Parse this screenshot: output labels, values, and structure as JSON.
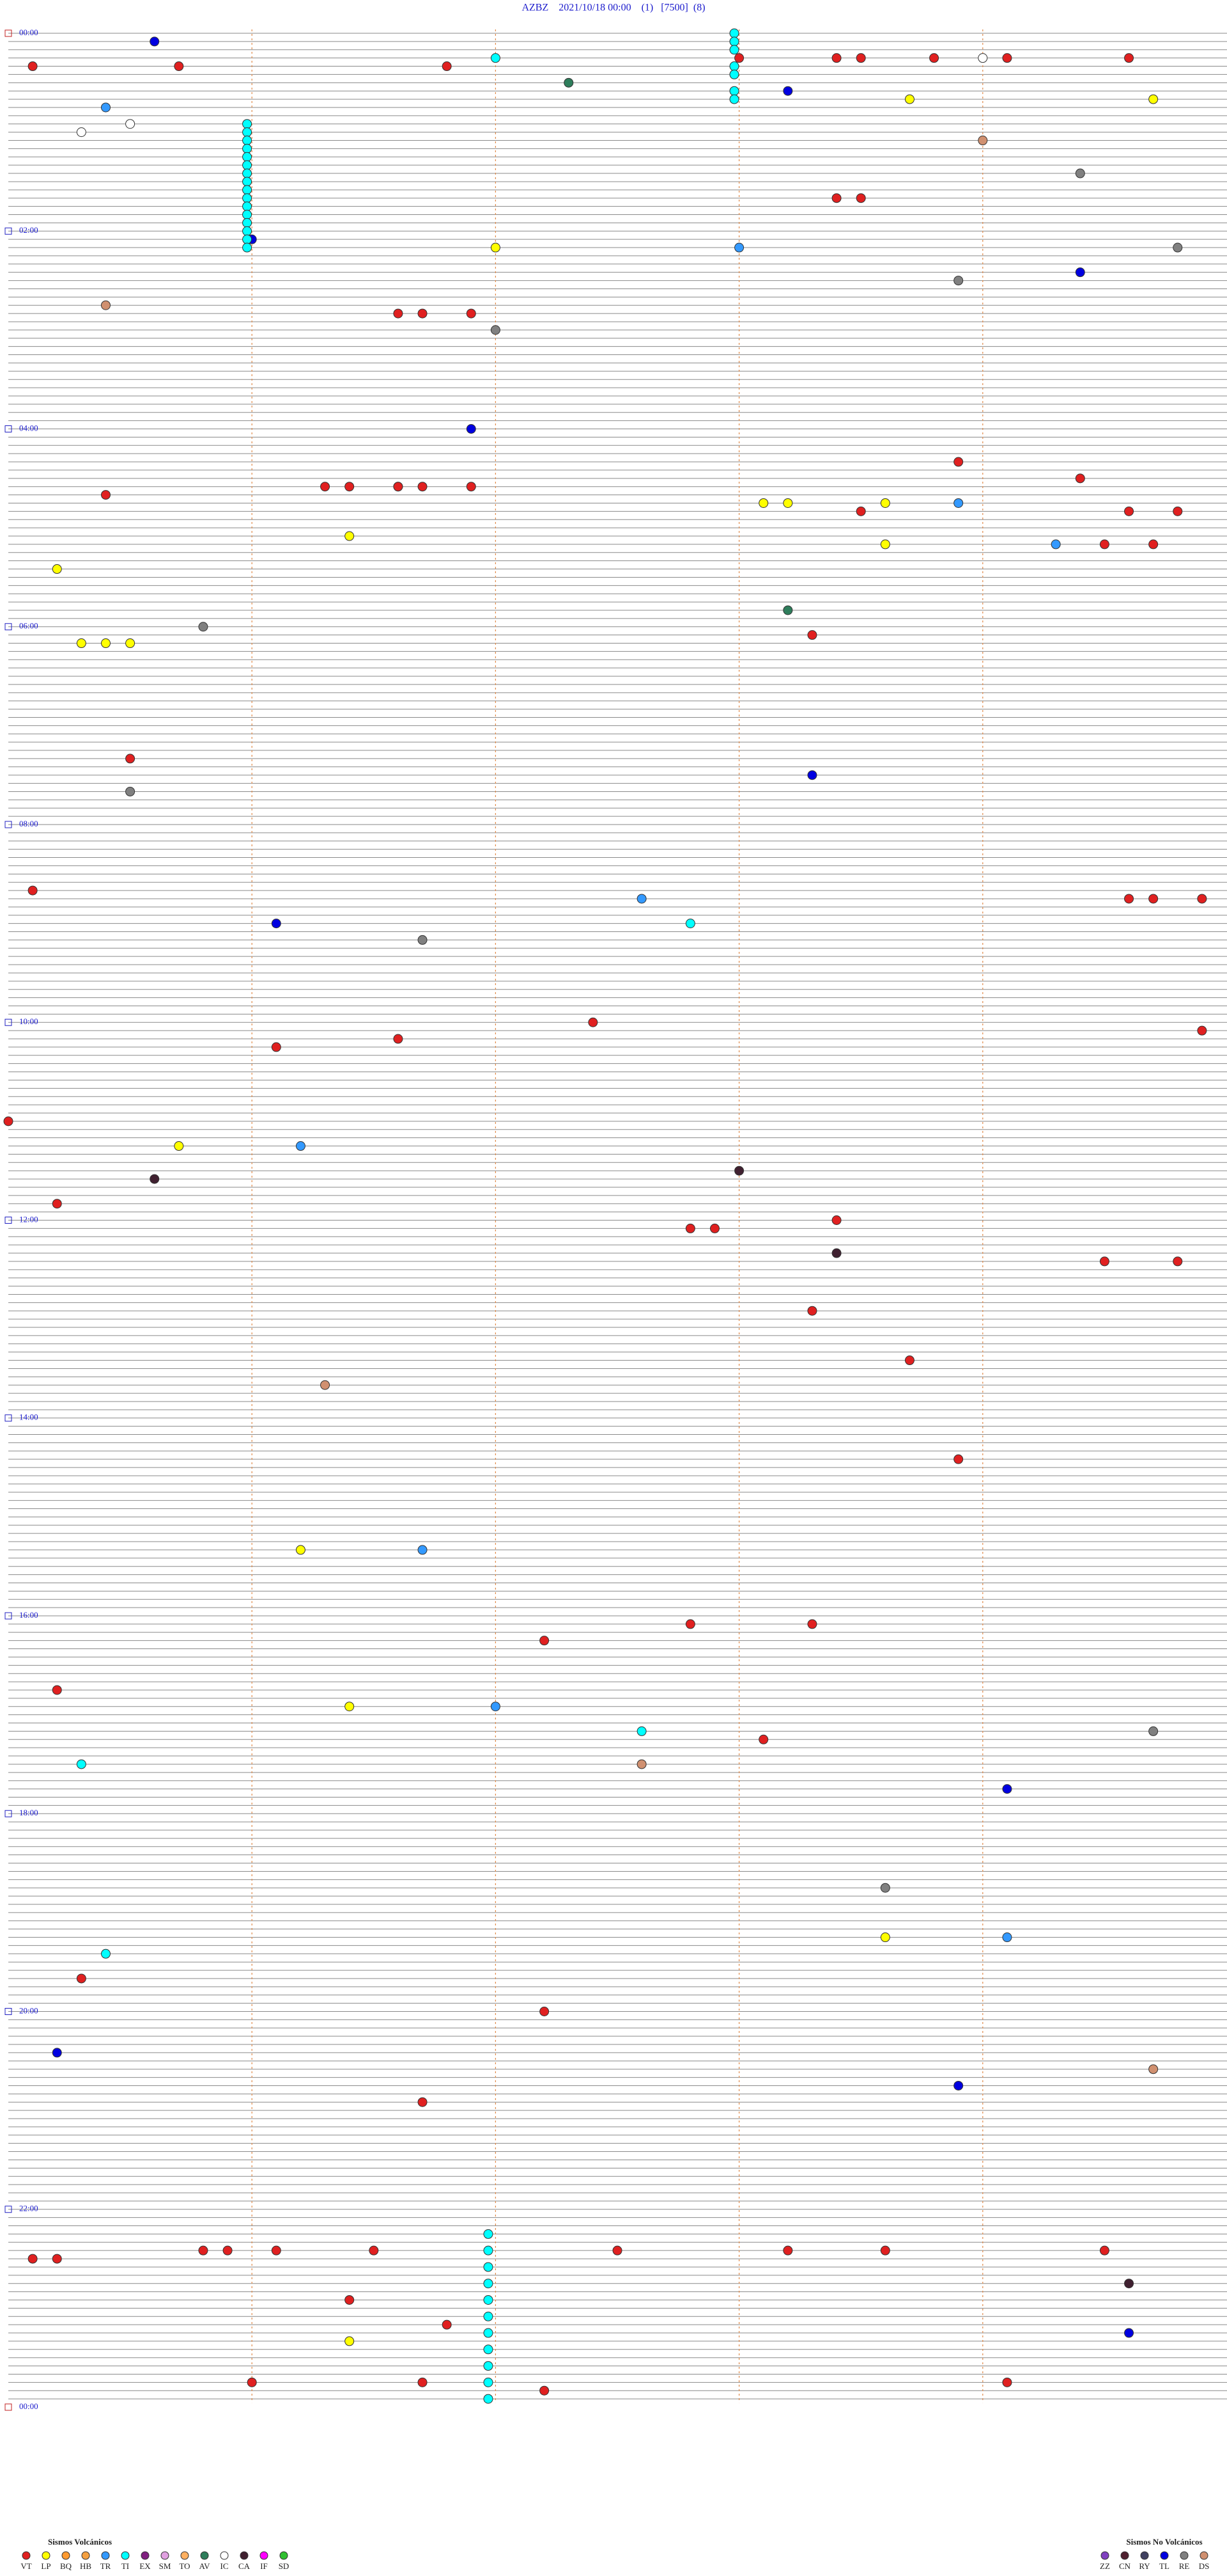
{
  "chart_data": {
    "type": "helicorder",
    "title": "AZBZ    2021/10/18 00:00    (1)   [7500]  (8)",
    "hour_labels": [
      "00:00",
      "02:00",
      "04:00",
      "06:00",
      "08:00",
      "10:00",
      "12:00",
      "14:00",
      "16:00",
      "18:00",
      "20:00",
      "22:00",
      "00:00"
    ],
    "legend": {
      "volcanic": {
        "title": "Sismos Volcánicos",
        "types": [
          {
            "code": "VT",
            "color": "#e02020"
          },
          {
            "code": "LP",
            "color": "#ffff00"
          },
          {
            "code": "BQ",
            "color": "#ff9a30"
          },
          {
            "code": "HB",
            "color": "#f5a040"
          },
          {
            "code": "TR",
            "color": "#3399ff"
          },
          {
            "code": "TI",
            "color": "#00ffff"
          },
          {
            "code": "EX",
            "color": "#802080"
          },
          {
            "code": "SM",
            "color": "#e0a0e0"
          },
          {
            "code": "TO",
            "color": "#ffb060"
          },
          {
            "code": "AV",
            "color": "#2e7d5b"
          },
          {
            "code": "IC",
            "color": "#ffffff"
          },
          {
            "code": "CA",
            "color": "#402030"
          },
          {
            "code": "IF",
            "color": "#ff00ff"
          },
          {
            "code": "SD",
            "color": "#30c030"
          }
        ]
      },
      "non_volcanic": {
        "title": "Sismos No Volcánicos",
        "types": [
          {
            "code": "ZZ",
            "color": "#8040c0"
          },
          {
            "code": "CN",
            "color": "#502030"
          },
          {
            "code": "RY",
            "color": "#404060"
          },
          {
            "code": "TL",
            "color": "#0000e0"
          },
          {
            "code": "RE",
            "color": "#808080"
          },
          {
            "code": "DS",
            "color": "#d09070"
          }
        ]
      }
    },
    "events": [
      {
        "t": 5.6,
        "type": "TL"
      },
      {
        "t": 20.1,
        "type": "VT"
      },
      {
        "t": 20.7,
        "type": "VT"
      },
      {
        "t": 21.8,
        "type": "VT"
      },
      {
        "t": 18.0,
        "type": "VT"
      },
      {
        "t": 18.4,
        "type": "VT"
      },
      {
        "t": 18.5,
        "type": "VT"
      },
      {
        "t": 18.8,
        "type": "VT"
      },
      {
        "t": 19.1,
        "type": "VT"
      },
      {
        "t": 19.6,
        "type": "VT"
      },
      {
        "t": 17.0,
        "type": "TI"
      },
      {
        "t": 19.0,
        "type": "IC"
      },
      {
        "t": 38.2,
        "type": "TL"
      },
      {
        "t": 32.3,
        "type": "AV"
      },
      {
        "t": 43.7,
        "type": "LP"
      },
      {
        "t": 44.7,
        "type": "LP"
      },
      {
        "t": 45.4,
        "type": "TR"
      },
      {
        "t": 60.3,
        "type": "IC"
      },
      {
        "t": 55.5,
        "type": "IC"
      },
      {
        "t": 69.0,
        "type": "DS"
      },
      {
        "t": 89.4,
        "type": "RE"
      },
      {
        "t": 103.4,
        "type": "VT"
      },
      {
        "t": 103.5,
        "type": "VT"
      },
      {
        "t": 126.0,
        "type": "TL"
      },
      {
        "t": 132.0,
        "type": "LP"
      },
      {
        "t": 133.0,
        "type": "TR"
      },
      {
        "t": 134.8,
        "type": "RE"
      },
      {
        "t": 149.4,
        "type": "TL"
      },
      {
        "t": 153.9,
        "type": "RE"
      },
      {
        "t": 165.4,
        "type": "DS"
      },
      {
        "t": 171.6,
        "type": "VT"
      },
      {
        "t": 171.7,
        "type": "VT"
      },
      {
        "t": 171.9,
        "type": "VT"
      },
      {
        "t": 182.0,
        "type": "RE"
      },
      {
        "t": 280.4,
        "type": "VT"
      },
      {
        "t": 276.3,
        "type": "VT"
      },
      {
        "t": 276.4,
        "type": "VT"
      },
      {
        "t": 276.6,
        "type": "VT"
      },
      {
        "t": 276.6,
        "type": "VT"
      },
      {
        "t": 276.7,
        "type": "VT"
      },
      {
        "t": 276.9,
        "type": "VT"
      },
      {
        "t": 241.9,
        "type": "TL"
      },
      {
        "t": 263.9,
        "type": "VT"
      },
      {
        "t": 274.4,
        "type": "VT"
      },
      {
        "t": 288.1,
        "type": "LP"
      },
      {
        "t": 288.2,
        "type": "LP"
      },
      {
        "t": 288.6,
        "type": "LP"
      },
      {
        "t": 288.9,
        "type": "TR"
      },
      {
        "t": 293.5,
        "type": "VT"
      },
      {
        "t": 294.6,
        "type": "VT"
      },
      {
        "t": 294.8,
        "type": "VT"
      },
      {
        "t": 306.4,
        "type": "LP"
      },
      {
        "t": 313.6,
        "type": "LP"
      },
      {
        "t": 314.3,
        "type": "TR"
      },
      {
        "t": 314.5,
        "type": "VT"
      },
      {
        "t": 314.7,
        "type": "VT"
      },
      {
        "t": 325.2,
        "type": "LP"
      },
      {
        "t": 370.3,
        "type": "LP"
      },
      {
        "t": 370.4,
        "type": "LP"
      },
      {
        "t": 370.5,
        "type": "LP"
      },
      {
        "t": 360.8,
        "type": "RE"
      },
      {
        "t": 353.2,
        "type": "AV"
      },
      {
        "t": 368.3,
        "type": "VT"
      },
      {
        "t": 440.5,
        "type": "VT"
      },
      {
        "t": 453.3,
        "type": "TL"
      },
      {
        "t": 460.5,
        "type": "RE"
      },
      {
        "t": 520.1,
        "type": "VT"
      },
      {
        "t": 529.6,
        "type": "VT"
      },
      {
        "t": 529.7,
        "type": "VT"
      },
      {
        "t": 529.9,
        "type": "VT"
      },
      {
        "t": 541.1,
        "type": "TL"
      },
      {
        "t": 551.7,
        "type": "RE"
      },
      {
        "t": 527.6,
        "type": "TR"
      },
      {
        "t": 542.8,
        "type": "TI"
      },
      {
        "t": 616.1,
        "type": "VT"
      },
      {
        "t": 611.6,
        "type": "VT"
      },
      {
        "t": 602.4,
        "type": "VT"
      },
      {
        "t": 609.9,
        "type": "VT"
      },
      {
        "t": 660.0,
        "type": "VT"
      },
      {
        "t": 675.7,
        "type": "LP"
      },
      {
        "t": 676.2,
        "type": "TR"
      },
      {
        "t": 695.6,
        "type": "CA"
      },
      {
        "t": 710.2,
        "type": "VT"
      },
      {
        "t": 693.0,
        "type": "CA"
      },
      {
        "t": 743.4,
        "type": "CA"
      },
      {
        "t": 727.8,
        "type": "VT"
      },
      {
        "t": 727.9,
        "type": "VT"
      },
      {
        "t": 723.4,
        "type": "VT"
      },
      {
        "t": 749.5,
        "type": "VT"
      },
      {
        "t": 749.8,
        "type": "VT"
      },
      {
        "t": 778.3,
        "type": "VT"
      },
      {
        "t": 808.7,
        "type": "VT"
      },
      {
        "t": 821.3,
        "type": "DS"
      },
      {
        "t": 868.9,
        "type": "VT"
      },
      {
        "t": 921.2,
        "type": "LP"
      },
      {
        "t": 921.7,
        "type": "TR"
      },
      {
        "t": 977.2,
        "type": "VT"
      },
      {
        "t": 967.8,
        "type": "VT"
      },
      {
        "t": 968.3,
        "type": "VT"
      },
      {
        "t": 1005.2,
        "type": "VT"
      },
      {
        "t": 1016.4,
        "type": "LP"
      },
      {
        "t": 1017.0,
        "type": "TR"
      },
      {
        "t": 1032.6,
        "type": "TI"
      },
      {
        "t": 1038.1,
        "type": "VT"
      },
      {
        "t": 1034.7,
        "type": "RE"
      },
      {
        "t": 1050.3,
        "type": "TI"
      },
      {
        "t": 1052.6,
        "type": "DS"
      },
      {
        "t": 1069.1,
        "type": "TL"
      },
      {
        "t": 1128.6,
        "type": "RE"
      },
      {
        "t": 1158.6,
        "type": "LP"
      },
      {
        "t": 1159.1,
        "type": "TR"
      },
      {
        "t": 1180.3,
        "type": "VT"
      },
      {
        "t": 1165.4,
        "type": "TI"
      },
      {
        "t": 1202.2,
        "type": "VT"
      },
      {
        "t": 1225.2,
        "type": "TL"
      },
      {
        "t": 1239.7,
        "type": "DS"
      },
      {
        "t": 1248.9,
        "type": "TL"
      },
      {
        "t": 1256.7,
        "type": "VT"
      },
      {
        "t": 1350.1,
        "type": "VT"
      },
      {
        "t": 1350.2,
        "type": "VT"
      },
      {
        "t": 1345.8,
        "type": "VT"
      },
      {
        "t": 1345.9,
        "type": "VT"
      },
      {
        "t": 1346.1,
        "type": "VT"
      },
      {
        "t": 1346.5,
        "type": "VT"
      },
      {
        "t": 1347.5,
        "type": "VT"
      },
      {
        "t": 1348.2,
        "type": "VT"
      },
      {
        "t": 1348.6,
        "type": "VT"
      },
      {
        "t": 1349.5,
        "type": "VT"
      },
      {
        "t": 1376.4,
        "type": "VT"
      },
      {
        "t": 1391.8,
        "type": "VT"
      },
      {
        "t": 1426.0,
        "type": "VT"
      },
      {
        "t": 1426.7,
        "type": "VT"
      },
      {
        "t": 1432.2,
        "type": "VT"
      },
      {
        "t": 1429.1,
        "type": "VT"
      },
      {
        "t": 1401.4,
        "type": "LP"
      },
      {
        "t": 1399.6,
        "type": "TL"
      },
      {
        "t": 1369.6,
        "type": "CA"
      },
      {
        "t": 2.98,
        "type": "TI"
      },
      {
        "t": 7.98,
        "type": "TI"
      },
      {
        "t": 12.98,
        "type": "TI"
      },
      {
        "t": 22.98,
        "type": "TI"
      },
      {
        "t": 27.98,
        "type": "TI"
      },
      {
        "t": 37.98,
        "type": "TI"
      },
      {
        "t": 42.98,
        "type": "TI"
      },
      {
        "t": 55.98,
        "type": "TI"
      },
      {
        "t": 60.98,
        "type": "TI"
      },
      {
        "t": 65.98,
        "type": "TI"
      },
      {
        "t": 70.98,
        "type": "TI"
      },
      {
        "t": 75.98,
        "type": "TI"
      },
      {
        "t": 80.98,
        "type": "TI"
      },
      {
        "t": 85.98,
        "type": "TI"
      },
      {
        "t": 90.98,
        "type": "TI"
      },
      {
        "t": 95.98,
        "type": "TI"
      },
      {
        "t": 100.98,
        "type": "TI"
      },
      {
        "t": 105.98,
        "type": "TI"
      },
      {
        "t": 110.98,
        "type": "TI"
      },
      {
        "t": 115.98,
        "type": "TI"
      },
      {
        "t": 120.98,
        "type": "TI"
      },
      {
        "t": 125.98,
        "type": "TI"
      },
      {
        "t": 130.98,
        "type": "TI"
      },
      {
        "t": 1336.97,
        "type": "TI"
      },
      {
        "t": 1346.97,
        "type": "TI"
      },
      {
        "t": 1356.97,
        "type": "TI"
      },
      {
        "t": 1366.97,
        "type": "TI"
      },
      {
        "t": 1376.97,
        "type": "TI"
      },
      {
        "t": 1386.97,
        "type": "TI"
      },
      {
        "t": 1396.97,
        "type": "TI"
      },
      {
        "t": 1406.97,
        "type": "TI"
      },
      {
        "t": 1416.97,
        "type": "TI"
      },
      {
        "t": 1426.97,
        "type": "TI"
      },
      {
        "t": 1436.97,
        "type": "TI"
      }
    ]
  }
}
